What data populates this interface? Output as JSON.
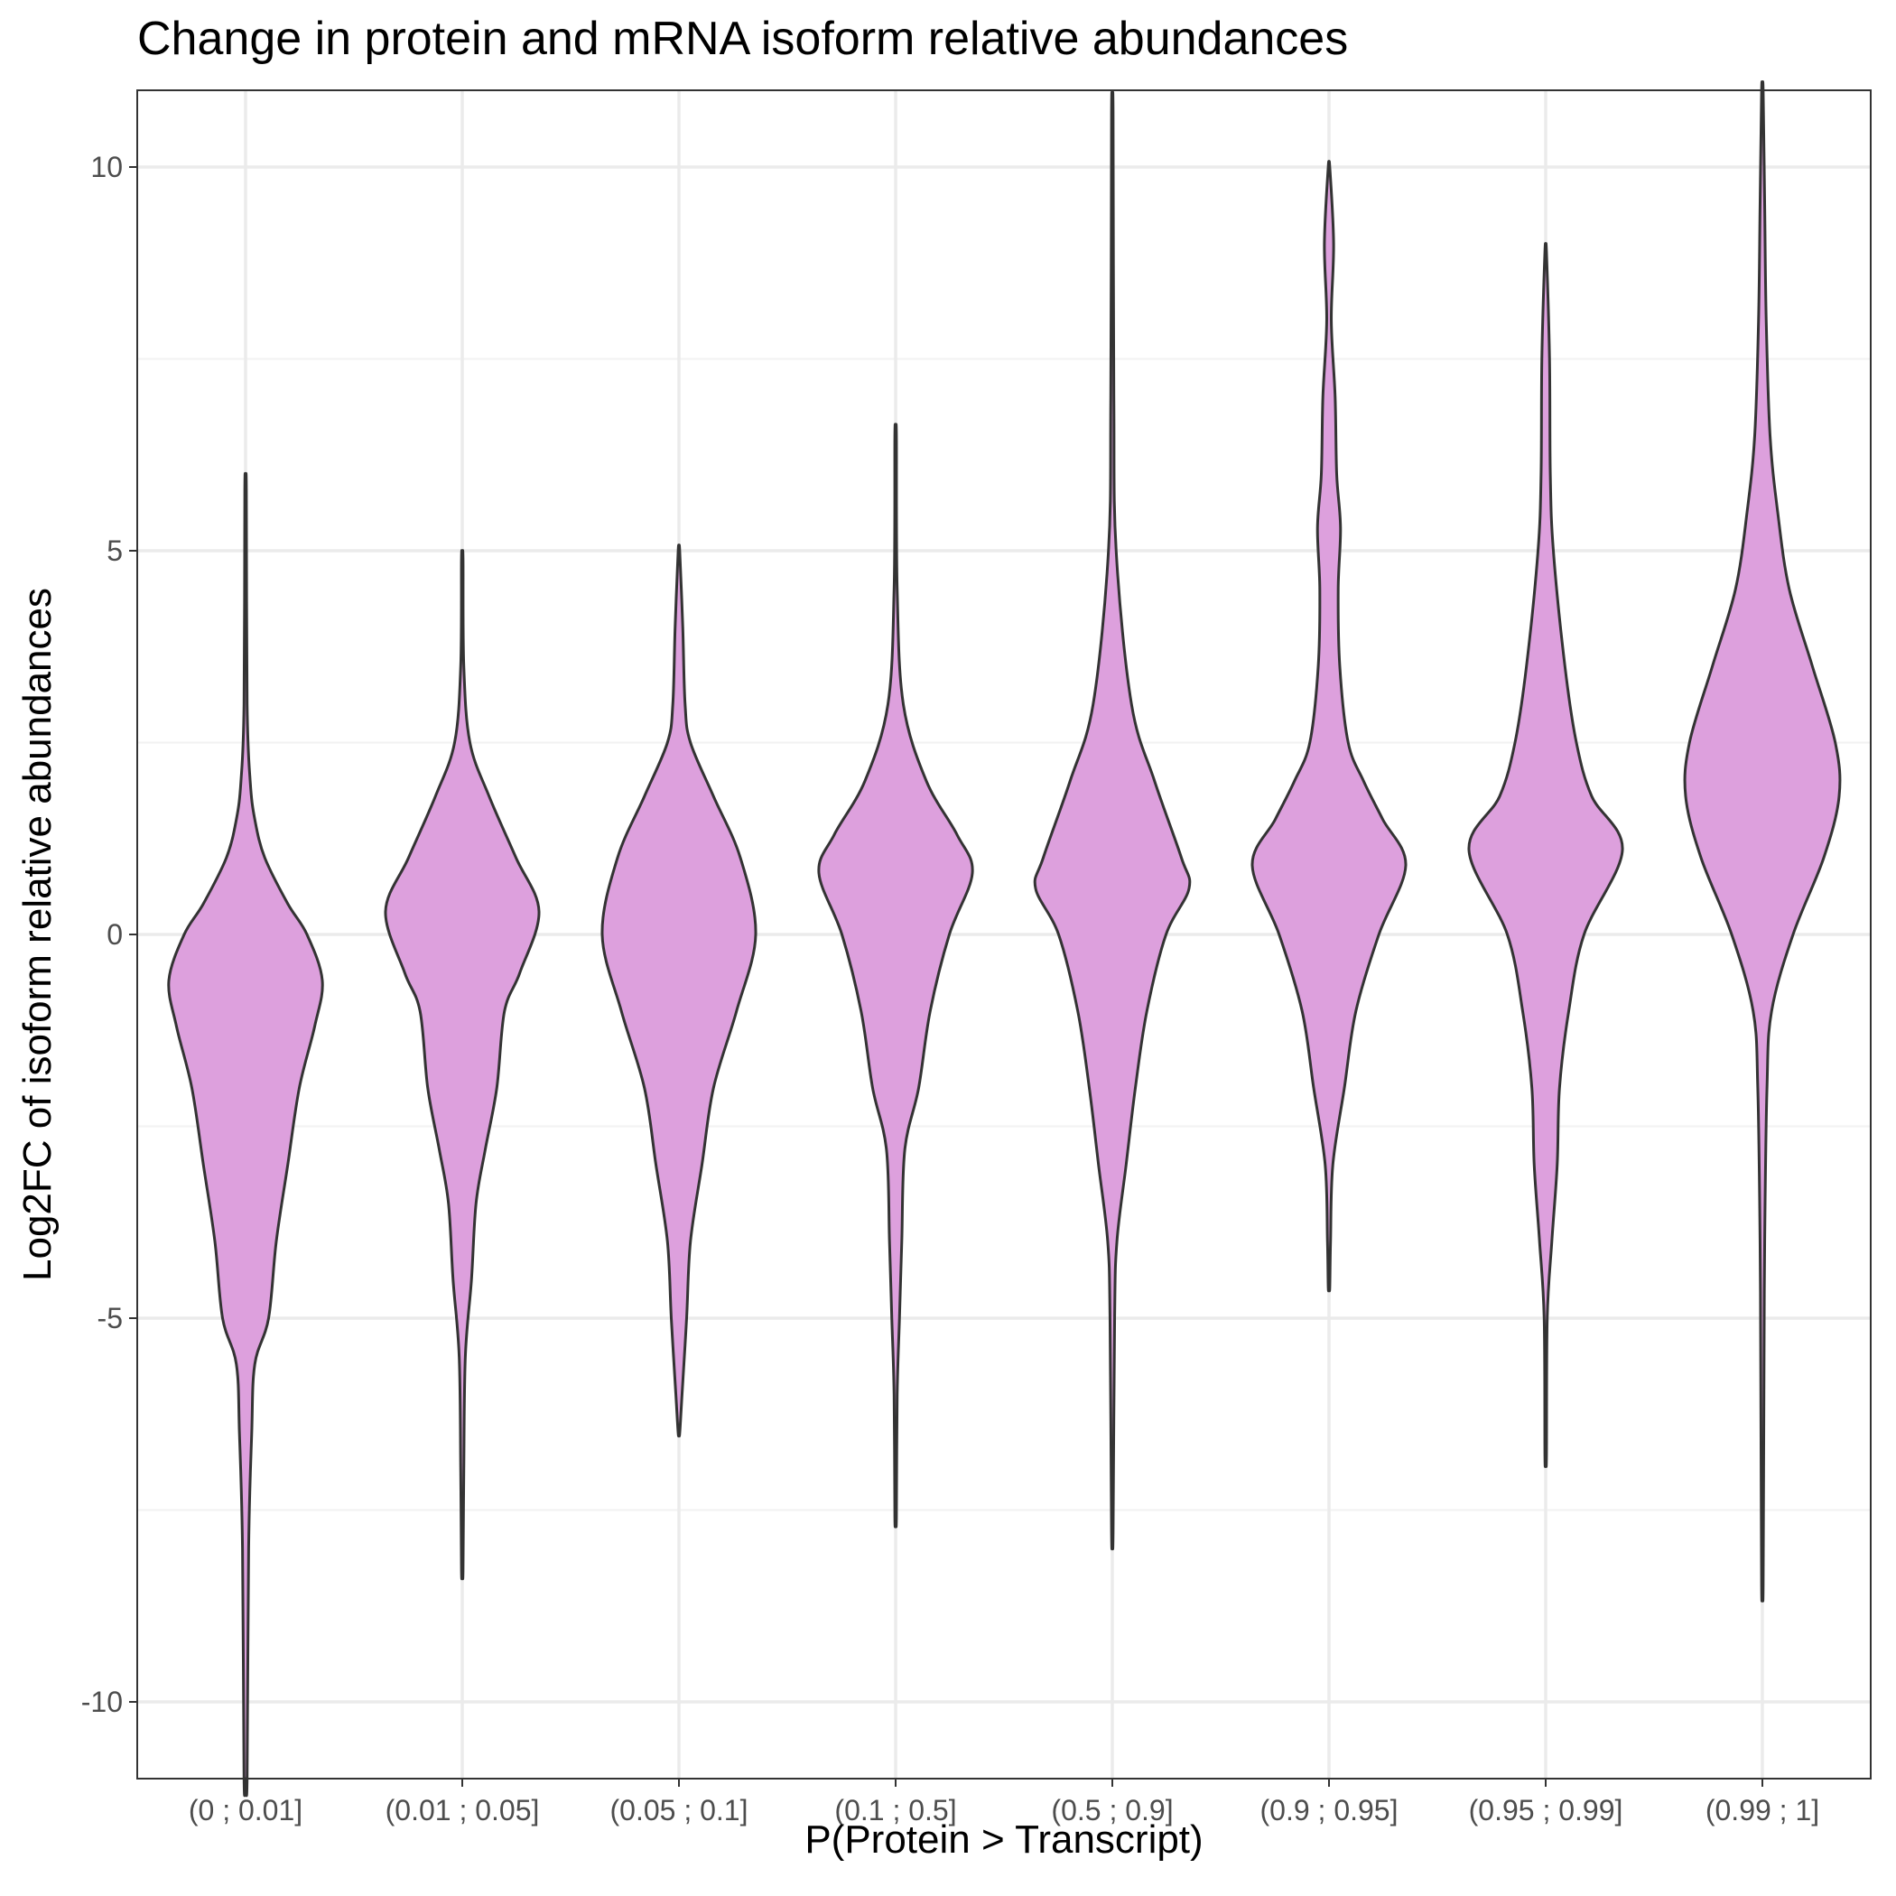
{
  "chart_data": {
    "type": "violin",
    "title": "Change in protein and mRNA isoform relative abundances",
    "xlabel": "P(Protein > Transcript)",
    "ylabel": "Log2FC of isoform relative abundances",
    "categories": [
      "(0 ; 0.01]",
      "(0.01 ; 0.05]",
      "(0.05 ; 0.1]",
      "(0.1 ; 0.5]",
      "(0.5 ; 0.9]",
      "(0.9 ; 0.95]",
      "(0.95 ; 0.99]",
      "(0.99 ; 1]"
    ],
    "ylim": [
      -11,
      11
    ],
    "yticks": [
      -10,
      -5,
      0,
      5,
      10
    ],
    "ytick_labels": [
      "-10",
      "-5",
      "0",
      "5",
      "10"
    ],
    "grid": true,
    "fill_color": "#dda0dd",
    "outline_color": "#333333",
    "violins": [
      {
        "category": "(0 ; 0.01]",
        "y_min": -11,
        "y_max": 5.8,
        "profile": [
          [
            5.8,
            0.01
          ],
          [
            3.0,
            0.02
          ],
          [
            2.0,
            0.06
          ],
          [
            1.5,
            0.12
          ],
          [
            1.0,
            0.25
          ],
          [
            0.4,
            0.55
          ],
          [
            0,
            0.8
          ],
          [
            -0.6,
            1.0
          ],
          [
            -1.2,
            0.9
          ],
          [
            -2.0,
            0.7
          ],
          [
            -3.0,
            0.55
          ],
          [
            -4.0,
            0.4
          ],
          [
            -5.0,
            0.3
          ],
          [
            -5.6,
            0.12
          ],
          [
            -6.5,
            0.08
          ],
          [
            -8.0,
            0.04
          ],
          [
            -11,
            0.02
          ]
        ]
      },
      {
        "category": "(0.01 ; 0.05]",
        "y_min": -8.3,
        "y_max": 4.9,
        "profile": [
          [
            4.9,
            0.01
          ],
          [
            3.5,
            0.02
          ],
          [
            2.5,
            0.1
          ],
          [
            1.8,
            0.35
          ],
          [
            1.0,
            0.7
          ],
          [
            0.3,
            1.0
          ],
          [
            -0.5,
            0.75
          ],
          [
            -1.0,
            0.55
          ],
          [
            -2.0,
            0.45
          ],
          [
            -2.8,
            0.3
          ],
          [
            -3.5,
            0.18
          ],
          [
            -4.5,
            0.12
          ],
          [
            -5.5,
            0.04
          ],
          [
            -7.0,
            0.02
          ],
          [
            -8.3,
            0.01
          ]
        ]
      },
      {
        "category": "(0.05 ; 0.1]",
        "y_min": -6.5,
        "y_max": 5.0,
        "profile": [
          [
            5.0,
            0.01
          ],
          [
            4.0,
            0.05
          ],
          [
            3.0,
            0.08
          ],
          [
            2.5,
            0.15
          ],
          [
            1.8,
            0.45
          ],
          [
            1.0,
            0.8
          ],
          [
            0,
            1.0
          ],
          [
            -1.0,
            0.75
          ],
          [
            -2.0,
            0.45
          ],
          [
            -3.0,
            0.3
          ],
          [
            -4.0,
            0.15
          ],
          [
            -5.0,
            0.1
          ],
          [
            -6.0,
            0.04
          ],
          [
            -6.5,
            0.01
          ]
        ]
      },
      {
        "category": "(0.1 ; 0.5]",
        "y_min": -7.6,
        "y_max": 6.5,
        "profile": [
          [
            6.5,
            0.01
          ],
          [
            4.5,
            0.02
          ],
          [
            3.0,
            0.1
          ],
          [
            2.0,
            0.4
          ],
          [
            1.3,
            0.8
          ],
          [
            0.8,
            1.0
          ],
          [
            0,
            0.7
          ],
          [
            -1.0,
            0.45
          ],
          [
            -2.0,
            0.3
          ],
          [
            -2.8,
            0.12
          ],
          [
            -4.0,
            0.08
          ],
          [
            -5.0,
            0.05
          ],
          [
            -6.0,
            0.02
          ],
          [
            -7.6,
            0.01
          ]
        ]
      },
      {
        "category": "(0.5 ; 0.9]",
        "y_min": -7.8,
        "y_max": 10.7,
        "profile": [
          [
            10.7,
            0.01
          ],
          [
            7.0,
            0.02
          ],
          [
            5.0,
            0.05
          ],
          [
            3.0,
            0.25
          ],
          [
            2.0,
            0.55
          ],
          [
            1.0,
            0.9
          ],
          [
            0.6,
            1.0
          ],
          [
            0,
            0.7
          ],
          [
            -1.0,
            0.45
          ],
          [
            -2.0,
            0.3
          ],
          [
            -3.0,
            0.18
          ],
          [
            -4.0,
            0.06
          ],
          [
            -5.0,
            0.03
          ],
          [
            -7.8,
            0.01
          ]
        ]
      },
      {
        "category": "(0.9 ; 0.95]",
        "y_min": -4.6,
        "y_max": 10.0,
        "profile": [
          [
            10.0,
            0.01
          ],
          [
            9.0,
            0.06
          ],
          [
            8.0,
            0.03
          ],
          [
            7.0,
            0.08
          ],
          [
            6.0,
            0.1
          ],
          [
            5.3,
            0.15
          ],
          [
            4.5,
            0.12
          ],
          [
            3.5,
            0.14
          ],
          [
            2.5,
            0.25
          ],
          [
            2.0,
            0.45
          ],
          [
            1.5,
            0.7
          ],
          [
            0.9,
            1.0
          ],
          [
            0,
            0.65
          ],
          [
            -1.0,
            0.35
          ],
          [
            -2.0,
            0.2
          ],
          [
            -3.0,
            0.05
          ],
          [
            -4.0,
            0.02
          ],
          [
            -4.6,
            0.01
          ]
        ]
      },
      {
        "category": "(0.95 ; 0.99]",
        "y_min": -6.8,
        "y_max": 8.9,
        "profile": [
          [
            8.9,
            0.01
          ],
          [
            7.5,
            0.05
          ],
          [
            6.0,
            0.06
          ],
          [
            5.0,
            0.1
          ],
          [
            3.5,
            0.25
          ],
          [
            2.5,
            0.4
          ],
          [
            1.8,
            0.6
          ],
          [
            1.1,
            1.0
          ],
          [
            0,
            0.5
          ],
          [
            -1.0,
            0.3
          ],
          [
            -2.0,
            0.18
          ],
          [
            -3.0,
            0.15
          ],
          [
            -4.0,
            0.08
          ],
          [
            -5.0,
            0.02
          ],
          [
            -6.8,
            0.01
          ]
        ]
      },
      {
        "category": "(0.99 ; 1]",
        "y_min": -8.5,
        "y_max": 11.0,
        "profile": [
          [
            11.0,
            0.01
          ],
          [
            9.5,
            0.03
          ],
          [
            8.0,
            0.05
          ],
          [
            6.5,
            0.1
          ],
          [
            5.5,
            0.2
          ],
          [
            4.5,
            0.35
          ],
          [
            3.5,
            0.65
          ],
          [
            2.5,
            0.95
          ],
          [
            1.8,
            1.0
          ],
          [
            1.0,
            0.8
          ],
          [
            0,
            0.4
          ],
          [
            -1.0,
            0.12
          ],
          [
            -2.0,
            0.06
          ],
          [
            -4.0,
            0.03
          ],
          [
            -6.0,
            0.02
          ],
          [
            -8.5,
            0.01
          ]
        ]
      }
    ]
  }
}
